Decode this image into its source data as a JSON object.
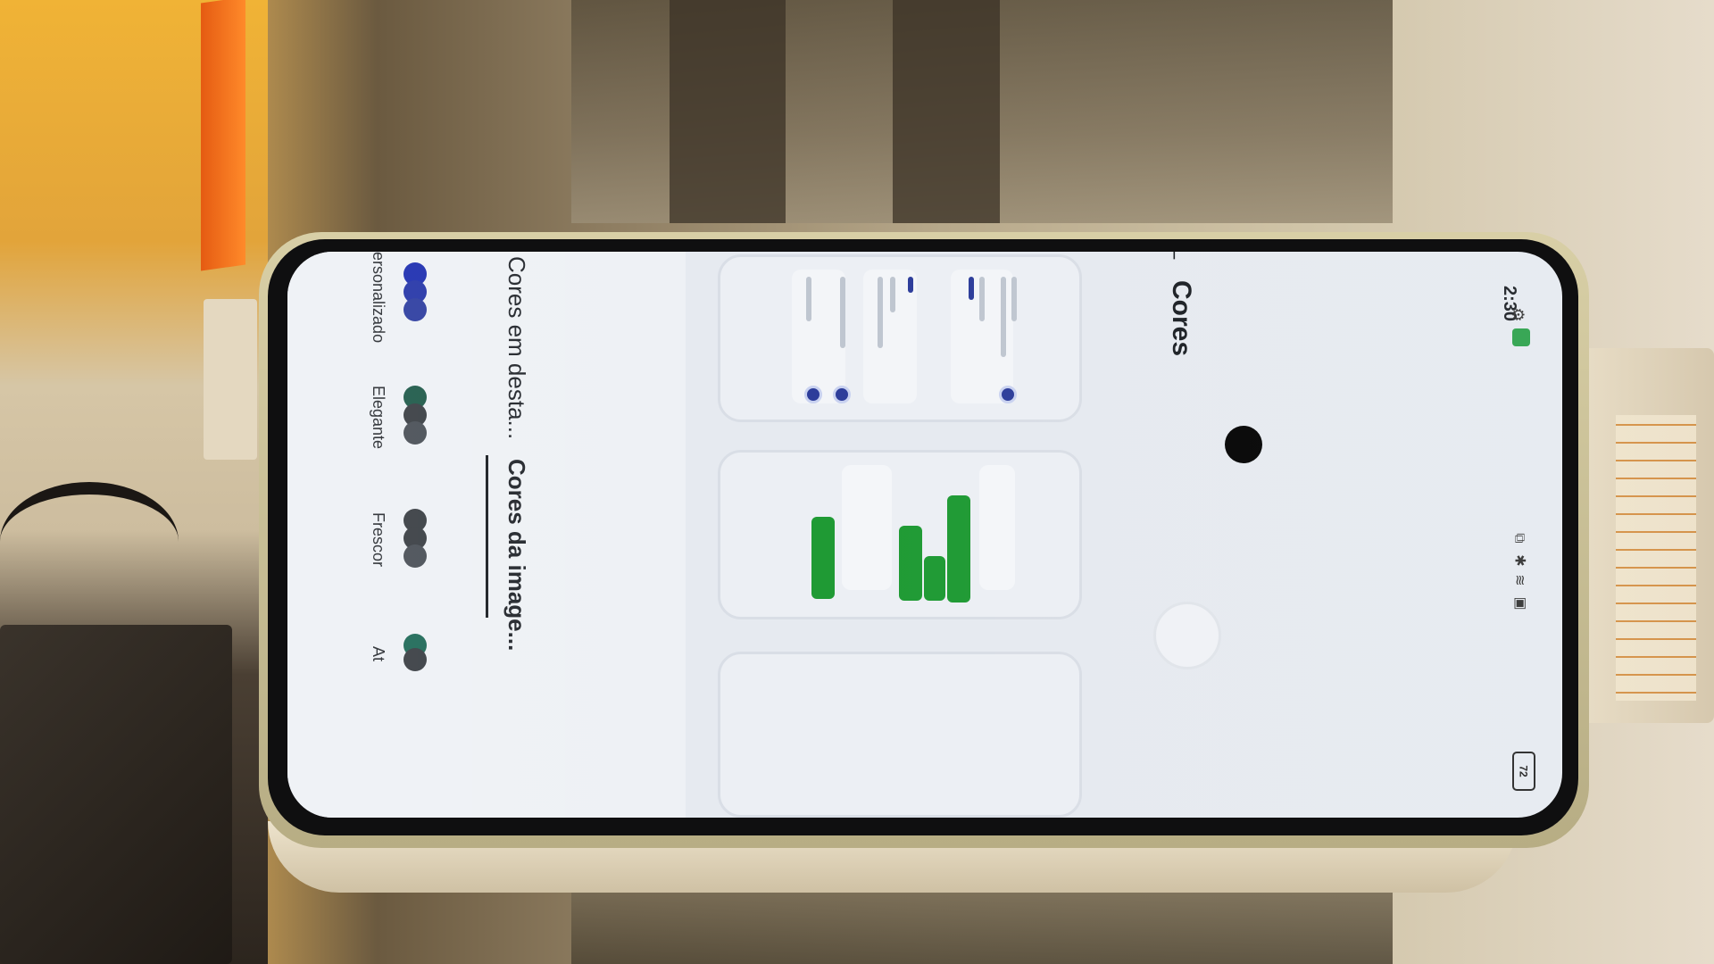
{
  "status_bar": {
    "time": "2:30",
    "battery": "72"
  },
  "header": {
    "back_icon": "arrow-left-icon",
    "title": "Cores"
  },
  "tabs": [
    {
      "label": "Cores da image...",
      "active": true
    },
    {
      "label": "Cores em desta...",
      "active": false
    }
  ],
  "swatches": [
    {
      "label": "Frescor",
      "colors": [
        "#3a3f44",
        "#3a3f44",
        "#4a5057"
      ]
    },
    {
      "label": "Elegante",
      "colors": [
        "#1f5a4a",
        "#3a3f44",
        "#4a5057"
      ]
    },
    {
      "label": "Personalizado",
      "colors": [
        "#1e2fb0",
        "#2636a8",
        "#2e3ea0"
      ]
    },
    {
      "label": "At",
      "colors": [
        "#1f6a58",
        "#3a3f44"
      ]
    }
  ],
  "colors": {
    "accent_blue": "#2d3d9a",
    "accent_green": "#1f9a34"
  }
}
